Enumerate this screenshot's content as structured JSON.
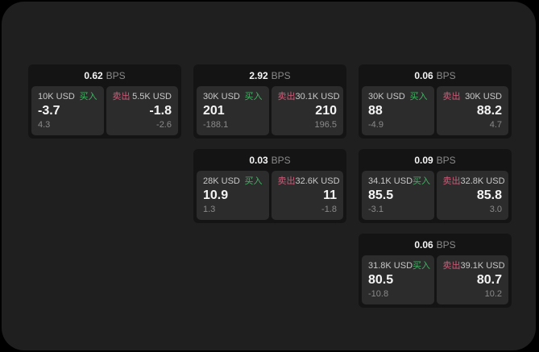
{
  "colors": {
    "outer_background": "#000000",
    "panel_background": "#1f1f20",
    "card_background": "#141415",
    "tile_background": "#2c2c2d",
    "text_primary": "#f5f5f5",
    "text_secondary": "#c8c8c8",
    "text_muted": "#8a8a8a",
    "buy_green": "#43b263",
    "sell_red": "#d15a78"
  },
  "shared": {
    "bps_suffix": "BPS",
    "buy_label": "买入",
    "sell_label": "卖出"
  },
  "cards": [
    {
      "row": 1,
      "col": 1,
      "bps": "0.62",
      "buy": {
        "notional": "10K USD",
        "price": "-3.7",
        "change": "4.3"
      },
      "sell": {
        "notional": "5.5K USD",
        "price": "-1.8",
        "change": "-2.6"
      }
    },
    {
      "row": 1,
      "col": 2,
      "bps": "2.92",
      "buy": {
        "notional": "30K USD",
        "price": "201",
        "change": "-188.1"
      },
      "sell": {
        "notional": "30.1K USD",
        "price": "210",
        "change": "196.5"
      }
    },
    {
      "row": 1,
      "col": 3,
      "bps": "0.06",
      "buy": {
        "notional": "30K USD",
        "price": "88",
        "change": "-4.9"
      },
      "sell": {
        "notional": "30K USD",
        "price": "88.2",
        "change": "4.7"
      }
    },
    {
      "row": 2,
      "col": 2,
      "bps": "0.03",
      "buy": {
        "notional": "28K USD",
        "price": "10.9",
        "change": "1.3"
      },
      "sell": {
        "notional": "32.6K USD",
        "price": "11",
        "change": "-1.8"
      }
    },
    {
      "row": 2,
      "col": 3,
      "bps": "0.09",
      "buy": {
        "notional": "34.1K USD",
        "price": "85.5",
        "change": "-3.1"
      },
      "sell": {
        "notional": "32.8K USD",
        "price": "85.8",
        "change": "3.0"
      }
    },
    {
      "row": 3,
      "col": 3,
      "bps": "0.06",
      "buy": {
        "notional": "31.8K USD",
        "price": "80.5",
        "change": "-10.8"
      },
      "sell": {
        "notional": "39.1K USD",
        "price": "80.7",
        "change": "10.2"
      }
    }
  ]
}
